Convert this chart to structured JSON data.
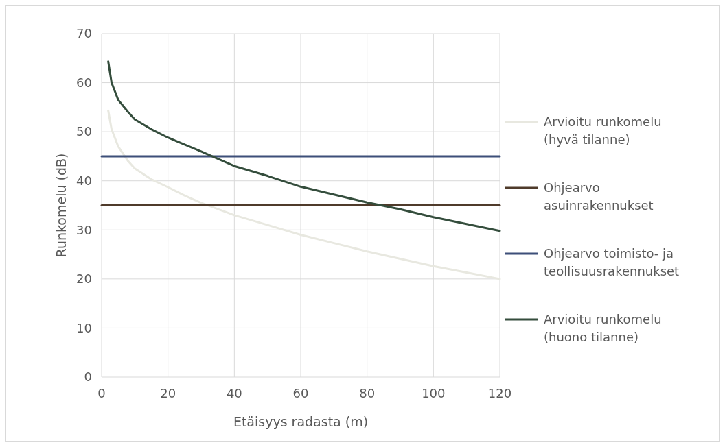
{
  "chart_data": {
    "type": "line",
    "xlabel": "Etäisyys radasta (m)",
    "ylabel": "Runkomelu (dB)",
    "xlim": [
      0,
      120
    ],
    "xticks": [
      0,
      20,
      40,
      60,
      80,
      100,
      120
    ],
    "ylim": [
      0,
      70
    ],
    "yticks": [
      0,
      10,
      20,
      30,
      40,
      50,
      60,
      70
    ],
    "grid": true,
    "legend": "right",
    "line_style": "solid",
    "series": [
      {
        "name": "Arvioitu runkomelu (hyvä tilanne)",
        "color": "#e8e8e0",
        "x": [
          2,
          3,
          5,
          8,
          10,
          15,
          20,
          25,
          30,
          40,
          50,
          60,
          70,
          80,
          90,
          100,
          110,
          120
        ],
        "values": [
          54.3,
          50.5,
          47,
          44,
          42.5,
          40.3,
          38.7,
          37,
          35.5,
          33,
          31,
          29,
          27.3,
          25.6,
          24.1,
          22.6,
          21.3,
          20
        ]
      },
      {
        "name": "Ohjearvo asuinrakennukset",
        "color": "#4f3b2b",
        "x": [
          0,
          120
        ],
        "values": [
          35,
          35
        ]
      },
      {
        "name": "Ohjearvo toimisto- ja teollisuusrakennukset",
        "color": "#3d4f79",
        "x": [
          0,
          120
        ],
        "values": [
          45,
          45
        ]
      },
      {
        "name": "Arvioitu runkomelu (huono tilanne)",
        "color": "#344d3c",
        "x": [
          2,
          3,
          5,
          8,
          10,
          15,
          20,
          30,
          40,
          50,
          60,
          70,
          80,
          90,
          100,
          110,
          120
        ],
        "values": [
          64.3,
          60,
          56.5,
          54,
          52.5,
          50.5,
          48.8,
          46,
          43,
          41,
          38.8,
          37.2,
          35.6,
          34.2,
          32.6,
          31.2,
          29.8
        ]
      }
    ]
  }
}
